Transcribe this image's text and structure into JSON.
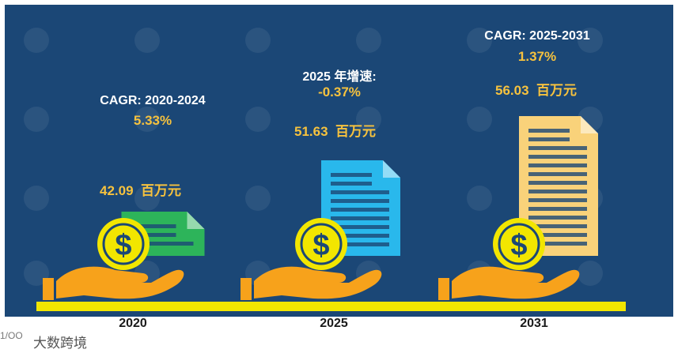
{
  "chart_data": {
    "type": "bar",
    "categories": [
      "2020",
      "2025",
      "2031"
    ],
    "values": [
      42.09,
      51.63,
      56.03
    ],
    "unit": "百万元",
    "value_labels": [
      "42.09",
      "51.63",
      "56.03"
    ],
    "annotations": [
      {
        "title": "CAGR: 2020-2024",
        "value": "5.33%"
      },
      {
        "title": "2025 年增速:",
        "value": "-0.37%"
      },
      {
        "title": "CAGR: 2025-2031",
        "value": "1.37%"
      }
    ],
    "icon_colors": [
      "#2db45a",
      "#29b8ec",
      "#f9d27a"
    ]
  },
  "colors": {
    "background": "#1b4776",
    "baseline": "#f2e600",
    "accent": "#f6c23e",
    "hand": "#f7a21b",
    "coin": "#f2e600"
  },
  "icons": {
    "document": "document-icon",
    "coin": "dollar-coin-icon",
    "hand": "hand-icon",
    "watermark": "globe-watermark-icon"
  },
  "brand": {
    "logo_text": "1/OO",
    "name": "大数跨境"
  }
}
